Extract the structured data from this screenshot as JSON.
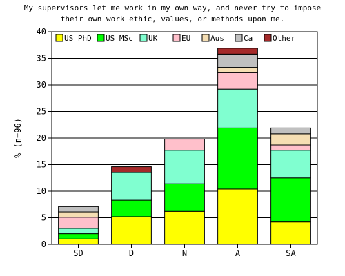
{
  "chart_data": {
    "type": "bar",
    "stacked": true,
    "title_lines": [
      "My supervisors let me work in my own way, and never try to impose",
      "their own work ethic, values, or methods upon me."
    ],
    "xlabel": "",
    "ylabel": "% (n=96)",
    "ylim": [
      0,
      40
    ],
    "yticks": [
      0,
      5,
      10,
      15,
      20,
      25,
      30,
      35,
      40
    ],
    "categories": [
      "SD",
      "D",
      "N",
      "A",
      "SA"
    ],
    "grid": true,
    "legend_position": "top",
    "series": [
      {
        "name": "US PhD",
        "color": "#ffff00",
        "values": [
          1.0,
          5.2,
          6.2,
          10.4,
          4.2
        ]
      },
      {
        "name": "US MSc",
        "color": "#00ff00",
        "values": [
          1.0,
          3.1,
          5.2,
          11.5,
          8.3
        ]
      },
      {
        "name": "UK",
        "color": "#80ffd0",
        "values": [
          1.0,
          5.2,
          6.3,
          7.3,
          5.2
        ]
      },
      {
        "name": "EU",
        "color": "#ffc0cb",
        "values": [
          2.1,
          0.0,
          2.1,
          3.1,
          1.0
        ]
      },
      {
        "name": "Aus",
        "color": "#f5deb3",
        "values": [
          1.0,
          0.0,
          0.0,
          1.0,
          2.1
        ]
      },
      {
        "name": "Ca",
        "color": "#c0c0c0",
        "values": [
          1.0,
          0.0,
          0.0,
          2.5,
          1.1
        ]
      },
      {
        "name": "Other",
        "color": "#a52a2a",
        "values": [
          0.0,
          1.1,
          0.0,
          1.1,
          0.0
        ]
      }
    ]
  }
}
